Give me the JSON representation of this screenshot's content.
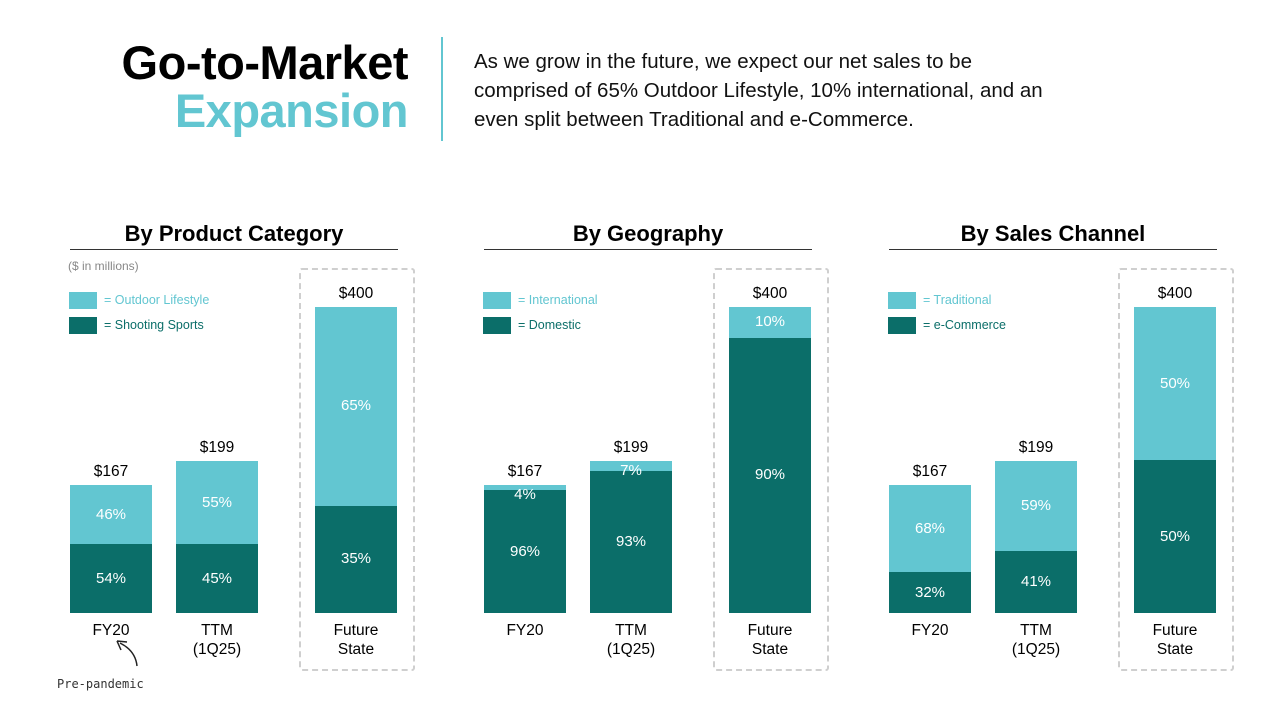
{
  "header": {
    "title_line1": "Go-to-Market",
    "title_line2": "Expansion",
    "description": "As we grow in the future, we expect our net sales to be\ncomprised of 65% Outdoor Lifestyle, 10% international, and an\neven split between Traditional and e-Commerce."
  },
  "chart_data": [
    {
      "type": "stacked-bar",
      "title": "By Product Category",
      "units_note": "($ in millions)",
      "annotation": "Pre-pandemic",
      "categories": [
        "FY20",
        "TTM\n(1Q25)",
        "Future\nState"
      ],
      "totals": {
        "values": [
          167,
          199,
          400
        ],
        "value_labels": [
          "$167",
          "$199",
          "$400"
        ]
      },
      "series": [
        {
          "name": "= Outdoor Lifestyle",
          "color": "#62c6d1",
          "values": [
            46,
            55,
            65
          ],
          "value_labels": [
            "46%",
            "55%",
            "65%"
          ]
        },
        {
          "name": "= Shooting Sports",
          "color": "#0b6e69",
          "values": [
            54,
            45,
            35
          ],
          "value_labels": [
            "54%",
            "45%",
            "35%"
          ]
        }
      ]
    },
    {
      "type": "stacked-bar",
      "title": "By Geography",
      "categories": [
        "FY20",
        "TTM\n(1Q25)",
        "Future\nState"
      ],
      "totals": {
        "values": [
          167,
          199,
          400
        ],
        "value_labels": [
          "$167",
          "$199",
          "$400"
        ]
      },
      "series": [
        {
          "name": "= International",
          "color": "#62c6d1",
          "values": [
            4,
            7,
            10
          ],
          "value_labels": [
            "4%",
            "7%",
            "10%"
          ]
        },
        {
          "name": "= Domestic",
          "color": "#0b6e69",
          "values": [
            96,
            93,
            90
          ],
          "value_labels": [
            "96%",
            "93%",
            "90%"
          ]
        }
      ]
    },
    {
      "type": "stacked-bar",
      "title": "By Sales Channel",
      "categories": [
        "FY20",
        "TTM\n(1Q25)",
        "Future\nState"
      ],
      "totals": {
        "values": [
          167,
          199,
          400
        ],
        "value_labels": [
          "$167",
          "$199",
          "$400"
        ]
      },
      "series": [
        {
          "name": "= Traditional",
          "color": "#62c6d1",
          "values": [
            68,
            59,
            50
          ],
          "value_labels": [
            "68%",
            "59%",
            "50%"
          ]
        },
        {
          "name": "= e-Commerce",
          "color": "#0b6e69",
          "values": [
            32,
            41,
            50
          ],
          "value_labels": [
            "32%",
            "41%",
            "50%"
          ]
        }
      ]
    }
  ]
}
